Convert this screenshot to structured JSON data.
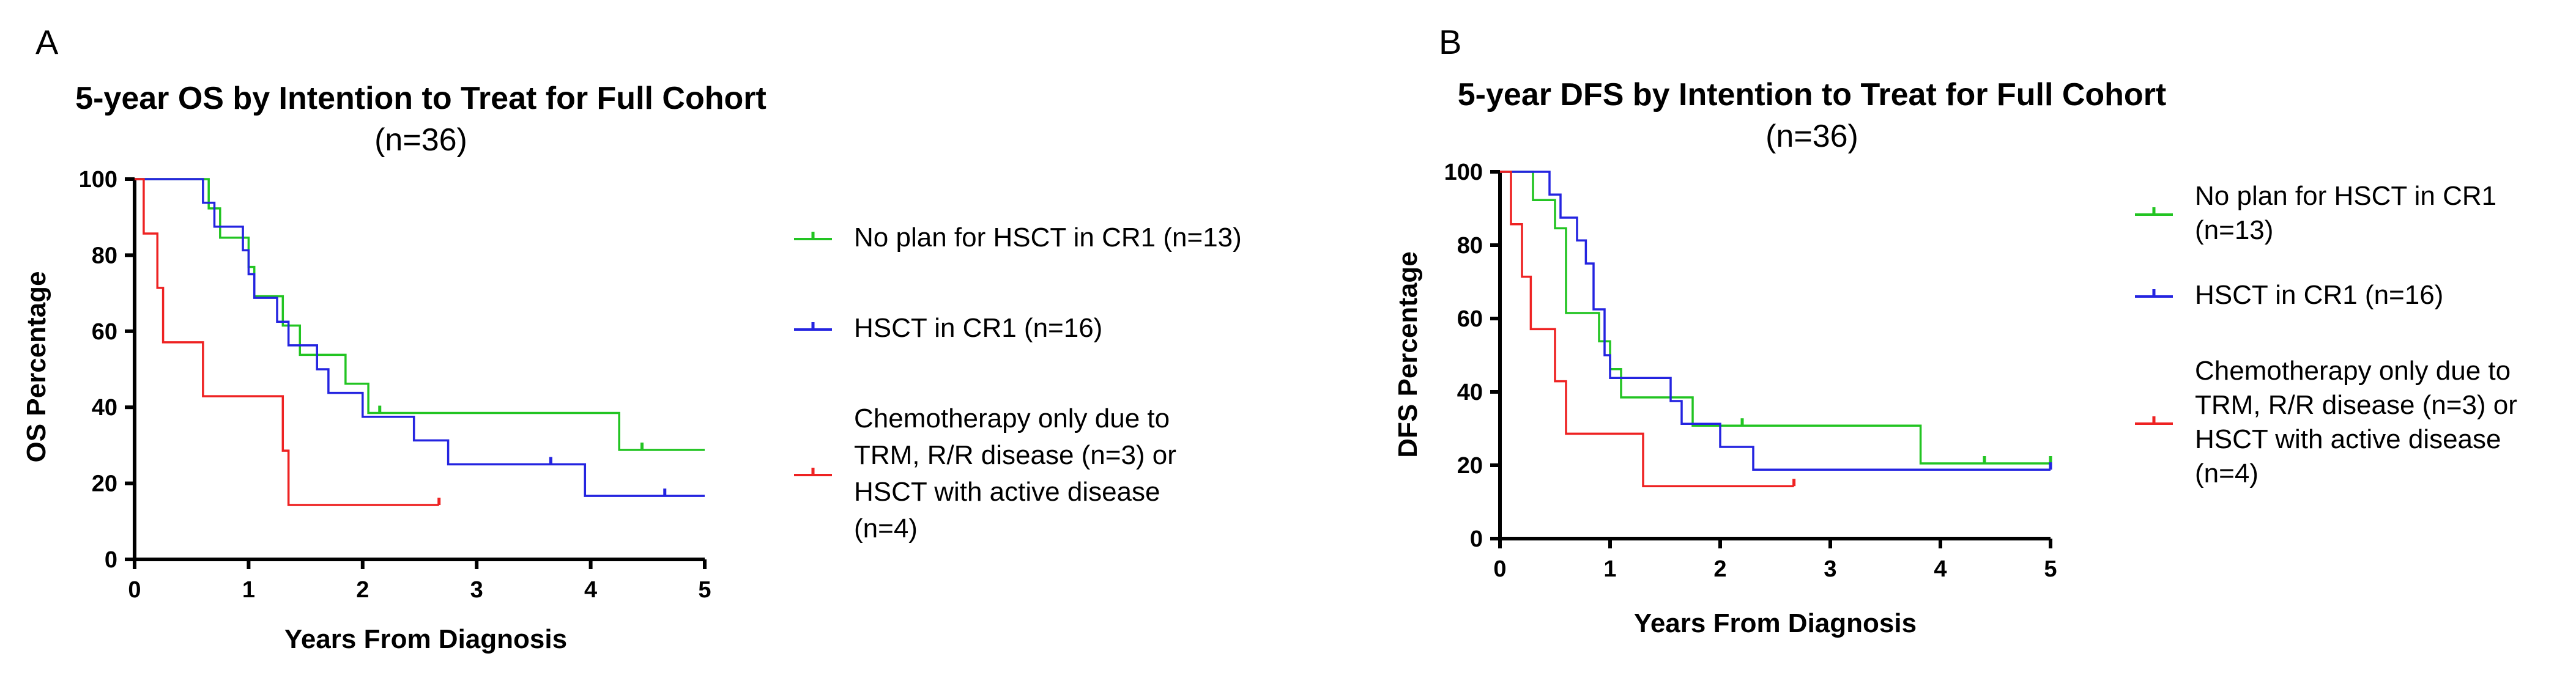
{
  "chart_data": [
    {
      "type": "line",
      "panel_label": "A",
      "title": "5-year OS by Intention to Treat for Full  Cohort",
      "subtitle": "(n=36)",
      "xlabel": "Years From Diagnosis",
      "ylabel": "OS Percentage",
      "xlim": [
        0,
        5
      ],
      "ylim": [
        0,
        100
      ],
      "xticks": [
        0,
        1,
        2,
        3,
        4,
        5
      ],
      "yticks": [
        0,
        20,
        40,
        60,
        80,
        100
      ],
      "series": [
        {
          "name": "No plan for HSCT in CR1 (n=13)",
          "legend_lines": [
            "No plan for HSCT in CR1 (n=13)"
          ],
          "color": "#22c422",
          "steps": [
            [
              0,
              100
            ],
            [
              0.65,
              92.3
            ],
            [
              0.75,
              84.6
            ],
            [
              1.0,
              76.9
            ],
            [
              1.05,
              69.2
            ],
            [
              1.3,
              61.5
            ],
            [
              1.45,
              53.8
            ],
            [
              1.85,
              46.2
            ],
            [
              2.05,
              38.5
            ],
            [
              4.25,
              28.8
            ],
            [
              5.0,
              28.8
            ]
          ],
          "censors": [
            [
              2.15,
              38.5
            ],
            [
              4.45,
              28.8
            ]
          ]
        },
        {
          "name": "HSCT in CR1 (n=16)",
          "legend_lines": [
            "HSCT in CR1 (n=16)"
          ],
          "color": "#2424e0",
          "steps": [
            [
              0,
              100
            ],
            [
              0.6,
              93.8
            ],
            [
              0.7,
              87.5
            ],
            [
              0.95,
              81.3
            ],
            [
              1.0,
              75.0
            ],
            [
              1.05,
              68.8
            ],
            [
              1.25,
              62.5
            ],
            [
              1.35,
              56.3
            ],
            [
              1.6,
              50.0
            ],
            [
              1.7,
              43.8
            ],
            [
              2.0,
              37.5
            ],
            [
              2.45,
              31.3
            ],
            [
              2.75,
              25.0
            ],
            [
              3.95,
              16.7
            ],
            [
              5.0,
              16.7
            ]
          ],
          "censors": [
            [
              3.65,
              25.0
            ],
            [
              4.65,
              16.7
            ]
          ]
        },
        {
          "name": "Chemotherapy only due to TRM, R/R disease (n=3) or HSCT with active disease (n=4)",
          "legend_lines": [
            "Chemotherapy only due to",
            "TRM, R/R disease (n=3) or",
            "HSCT with active disease",
            "(n=4)"
          ],
          "color": "#ee2222",
          "steps": [
            [
              0,
              100
            ],
            [
              0.08,
              85.7
            ],
            [
              0.2,
              71.4
            ],
            [
              0.25,
              57.1
            ],
            [
              0.6,
              42.9
            ],
            [
              1.3,
              28.6
            ],
            [
              1.35,
              14.3
            ],
            [
              2.67,
              14.3
            ]
          ],
          "censors": [
            [
              2.67,
              14.3
            ]
          ]
        }
      ]
    },
    {
      "type": "line",
      "panel_label": "B",
      "title": "5-year DFS by Intention to Treat for Full Cohort",
      "subtitle": "(n=36)",
      "xlabel": "Years From Diagnosis",
      "ylabel": "DFS Percentage",
      "xlim": [
        0,
        5
      ],
      "ylim": [
        0,
        100
      ],
      "xticks": [
        0,
        1,
        2,
        3,
        4,
        5
      ],
      "yticks": [
        0,
        20,
        40,
        60,
        80,
        100
      ],
      "series": [
        {
          "name": "No plan for HSCT in CR1 (n=13)",
          "legend_lines": [
            "No plan for HSCT in CR1",
            "(n=13)"
          ],
          "color": "#22c422",
          "steps": [
            [
              0,
              100
            ],
            [
              0.3,
              92.3
            ],
            [
              0.5,
              84.6
            ],
            [
              0.6,
              61.5
            ],
            [
              0.9,
              53.8
            ],
            [
              1.0,
              46.2
            ],
            [
              1.1,
              38.5
            ],
            [
              1.75,
              30.8
            ],
            [
              3.82,
              20.5
            ],
            [
              5.0,
              20.5
            ]
          ],
          "censors": [
            [
              2.2,
              30.8
            ],
            [
              4.4,
              20.5
            ],
            [
              5.0,
              20.5
            ]
          ]
        },
        {
          "name": "HSCT in CR1 (n=16)",
          "legend_lines": [
            "HSCT in CR1 (n=16)"
          ],
          "color": "#2424e0",
          "steps": [
            [
              0,
              100
            ],
            [
              0.45,
              93.8
            ],
            [
              0.55,
              87.5
            ],
            [
              0.7,
              81.3
            ],
            [
              0.78,
              75.0
            ],
            [
              0.85,
              62.5
            ],
            [
              0.95,
              50.0
            ],
            [
              1.0,
              43.8
            ],
            [
              1.55,
              37.5
            ],
            [
              1.65,
              31.3
            ],
            [
              2.0,
              25.0
            ],
            [
              2.3,
              18.8
            ],
            [
              5.0,
              18.8
            ]
          ],
          "censors": [
            [
              5.0,
              18.8
            ]
          ]
        },
        {
          "name": "Chemotherapy only due to TRM, R/R disease (n=3) or HSCT with active disease (n=4)",
          "legend_lines": [
            "Chemotherapy only due to",
            "TRM, R/R disease (n=3) or",
            "HSCT with active disease",
            "(n=4)"
          ],
          "color": "#ee2222",
          "steps": [
            [
              0,
              100
            ],
            [
              0.1,
              85.7
            ],
            [
              0.2,
              71.4
            ],
            [
              0.28,
              57.1
            ],
            [
              0.5,
              42.9
            ],
            [
              0.6,
              28.6
            ],
            [
              1.3,
              14.3
            ],
            [
              2.67,
              14.3
            ]
          ],
          "censors": [
            [
              2.67,
              14.3
            ]
          ]
        }
      ]
    }
  ]
}
